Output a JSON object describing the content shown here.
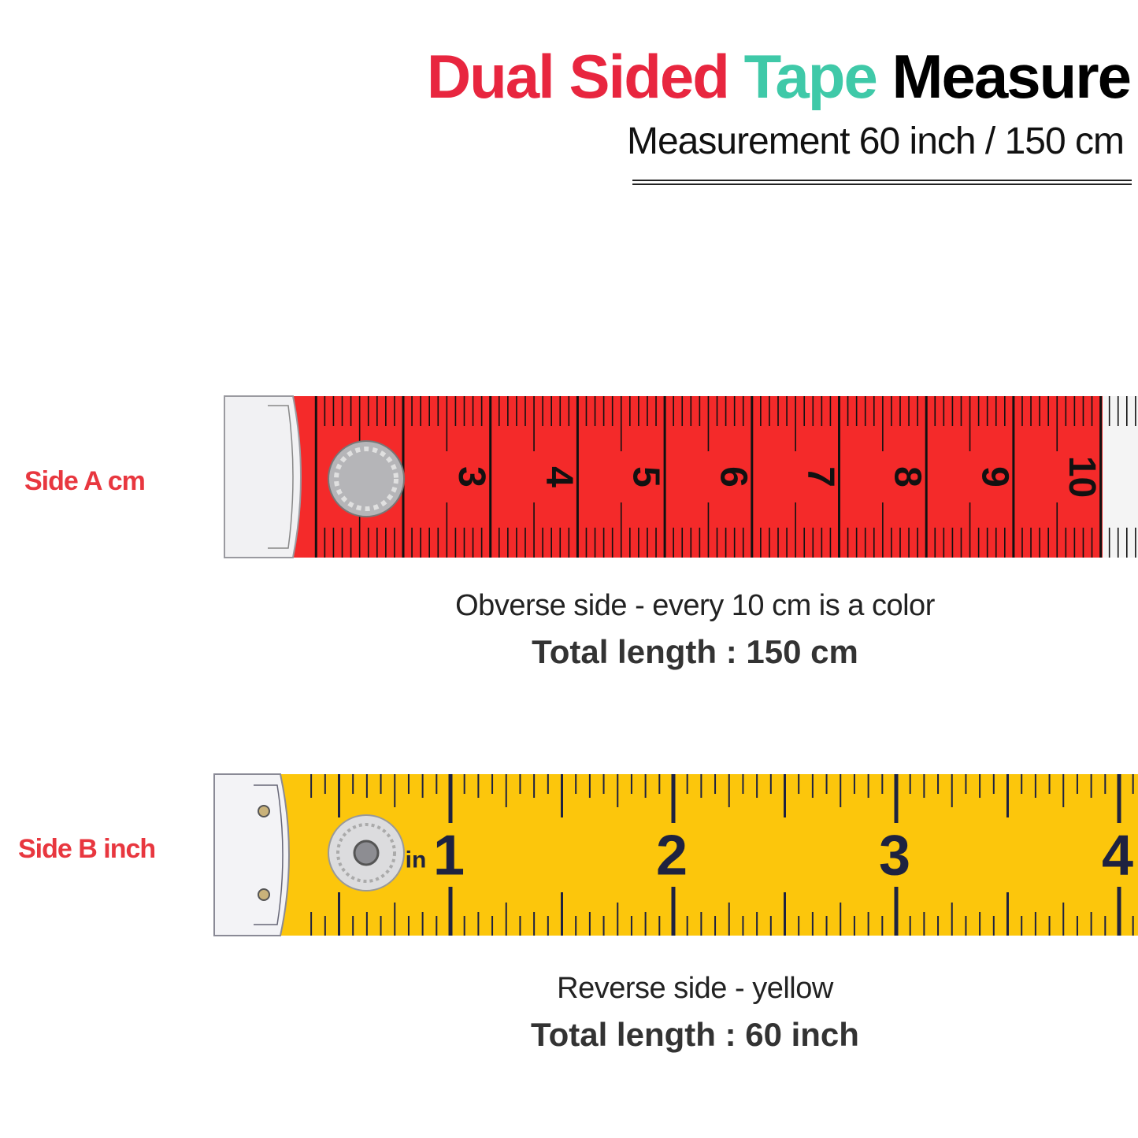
{
  "header": {
    "title_parts": [
      {
        "text": "Dual Sided ",
        "color": "#e8263f"
      },
      {
        "text": "Tape ",
        "color": "#3fc9a8"
      },
      {
        "text": "Measure",
        "color": "#000000"
      }
    ],
    "subtitle": "Measurement 60 inch / 150 cm"
  },
  "side_a": {
    "label": "Side A cm",
    "tape_color": "#f42a2a",
    "numbers": [
      "3",
      "4",
      "5",
      "6",
      "7",
      "8",
      "9",
      "10"
    ],
    "caption": "Obverse side - every 10 cm is a color",
    "total": "Total length : 150 cm"
  },
  "side_b": {
    "label": "Side B inch",
    "tape_color": "#fcc60c",
    "unit": "in",
    "numbers": [
      "1",
      "2",
      "3",
      "4"
    ],
    "caption": "Reverse side - yellow",
    "total": "Total length : 60 inch"
  }
}
